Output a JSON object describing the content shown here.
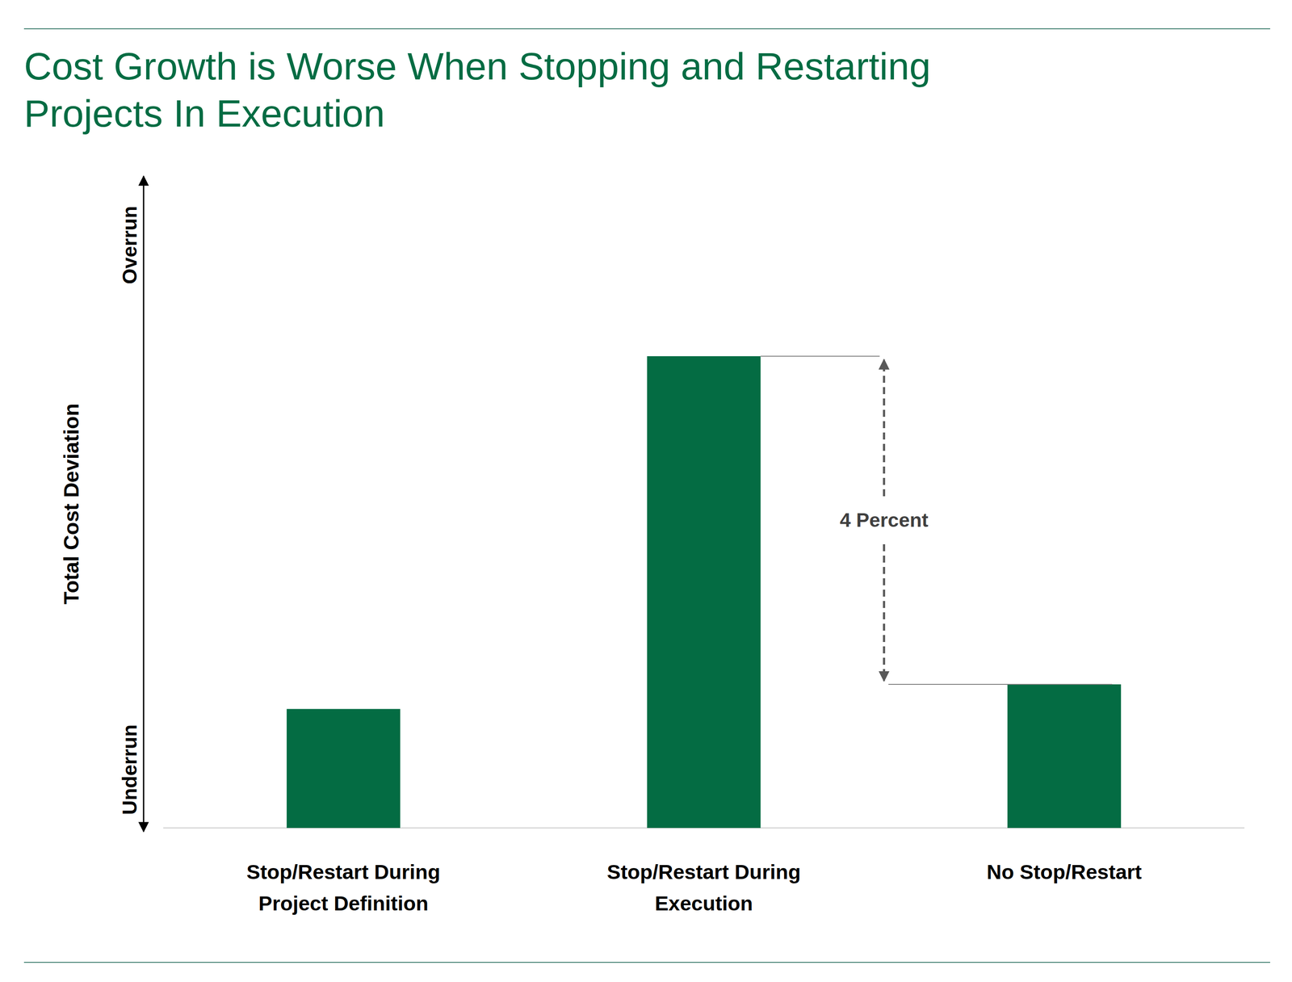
{
  "chart_data": {
    "type": "bar",
    "title": "Cost Growth is Worse When Stopping and Restarting\nProjects In Execution",
    "ylabel": "Total Cost Deviation",
    "categories": [
      "Stop/Restart During\nProject Definition",
      "Stop/Restart During\nExecution",
      "No Stop/Restart"
    ],
    "values": [
      1.45,
      5.75,
      1.75
    ],
    "color": "#046c43",
    "ylim": [
      0,
      7.9
    ],
    "yticks": [
      {
        "value": 0,
        "label": "Underrun"
      },
      {
        "value": 7.9,
        "label": "Overrun"
      }
    ],
    "grid": false,
    "annotations": [
      {
        "text": "4 Percent",
        "between": [
          "Stop/Restart During\nExecution",
          "No Stop/Restart"
        ]
      }
    ]
  }
}
